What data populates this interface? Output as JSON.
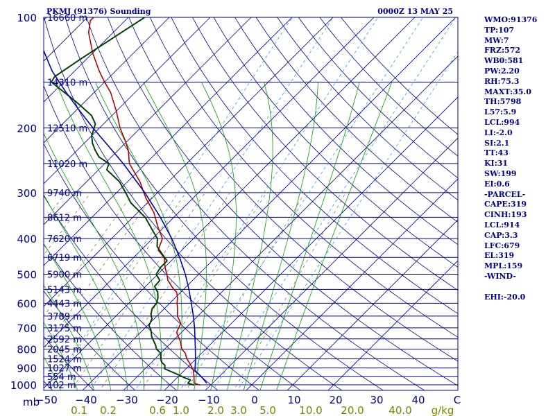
{
  "header": {
    "station": "PKMJ (91376) Sounding",
    "time": "0000Z 13 MAY 25"
  },
  "colors": {
    "isobar": "#00008b",
    "isotherm": "#00008b",
    "dry_adiabat": "#00008b",
    "moist_adiabat": "#00a000",
    "mixing_ratio": "#808040",
    "isohume": "#2aa0e0",
    "temperature": "#b00000",
    "dewpoint": "#004000",
    "parcel": "#0000b0",
    "text": "#00008b",
    "mixing_label": "#808000"
  },
  "indices": [
    "WMO:91376",
    "TP:107",
    "MW:7",
    "FRZ:572",
    "WB0:581",
    "PW:2.20",
    "RH:75.3",
    "MAXT:35.0",
    "TH:5798",
    "L57:5.9",
    "LCL:994",
    "LI:-2.0",
    "SI:2.1",
    "TT:43",
    "KI:31",
    "SW:199",
    "EI:0.6",
    "-PARCEL-",
    "CAPE:319",
    "CINH:193",
    "LCL:914",
    "CAP:3.3",
    "LFC:679",
    "EL:319",
    "MPL:159",
    "-WIND-",
    "",
    "EHI:-20.0"
  ],
  "chart_data": {
    "type": "line",
    "subtype": "skew-t log-p",
    "pressure_axis": {
      "label": "mb",
      "scale": "log",
      "range": [
        1000,
        100
      ],
      "ticks": [
        100,
        200,
        300,
        400,
        500,
        600,
        700,
        800,
        900,
        1000
      ]
    },
    "temperature_axis": {
      "range": [
        -50,
        50
      ],
      "ticks": [
        "−50",
        "−40",
        "−30",
        "−20",
        "−10",
        "0",
        "10",
        "20",
        "30",
        "40",
        "C"
      ]
    },
    "mixing_ratio_axis": {
      "unit": "g/kg",
      "ticks": [
        "0.1",
        "0.2",
        "0.6",
        "1.0",
        "2.0",
        "3.0",
        "5.0",
        "10.0",
        "20.0",
        "40.0"
      ]
    },
    "height_labels": [
      {
        "p": 100,
        "label": "16660 m"
      },
      {
        "p": 150,
        "label": "14310 m"
      },
      {
        "p": 200,
        "label": "12510 m"
      },
      {
        "p": 250,
        "label": "11020 m"
      },
      {
        "p": 300,
        "label": "9740 m"
      },
      {
        "p": 350,
        "label": "8612 m"
      },
      {
        "p": 400,
        "label": "7620 m"
      },
      {
        "p": 450,
        "label": "6719 m"
      },
      {
        "p": 500,
        "label": "5900 m"
      },
      {
        "p": 550,
        "label": "5143 m"
      },
      {
        "p": 600,
        "label": "4443 m"
      },
      {
        "p": 650,
        "label": "3789 m"
      },
      {
        "p": 700,
        "label": "3175 m"
      },
      {
        "p": 750,
        "label": "2592 m"
      },
      {
        "p": 800,
        "label": "2045 m"
      },
      {
        "p": 850,
        "label": "1524 m"
      },
      {
        "p": 900,
        "label": "1027 m"
      },
      {
        "p": 950,
        "label": "554 m"
      },
      {
        "p": 1000,
        "label": "102 m"
      }
    ],
    "series": [
      {
        "key": "temperature",
        "points": [
          [
            1002,
            27.5
          ],
          [
            990,
            25.5
          ],
          [
            965,
            24.5
          ],
          [
            935,
            23.2
          ],
          [
            910,
            22.0
          ],
          [
            880,
            20.0
          ],
          [
            850,
            17.8
          ],
          [
            820,
            16.0
          ],
          [
            800,
            14.2
          ],
          [
            760,
            11.8
          ],
          [
            720,
            8.8
          ],
          [
            700,
            8.2
          ],
          [
            680,
            7.6
          ],
          [
            650,
            5.0
          ],
          [
            620,
            3.2
          ],
          [
            600,
            1.8
          ],
          [
            580,
            0.6
          ],
          [
            560,
            -1.0
          ],
          [
            545,
            -3.0
          ],
          [
            520,
            -6.0
          ],
          [
            500,
            -7.8
          ],
          [
            480,
            -9.8
          ],
          [
            450,
            -12.6
          ],
          [
            430,
            -15.8
          ],
          [
            400,
            -17.6
          ],
          [
            370,
            -21.8
          ],
          [
            340,
            -26.0
          ],
          [
            310,
            -31.6
          ],
          [
            280,
            -37.0
          ],
          [
            250,
            -44.0
          ],
          [
            230,
            -47.5
          ],
          [
            215,
            -51.0
          ],
          [
            200,
            -55.0
          ],
          [
            180,
            -60.0
          ],
          [
            160,
            -66.0
          ],
          [
            150,
            -70.0
          ],
          [
            140,
            -74.0
          ],
          [
            125,
            -80.0
          ],
          [
            110,
            -86.0
          ],
          [
            102,
            -88.5
          ],
          [
            100,
            -88.5
          ]
        ]
      },
      {
        "key": "dewpoint",
        "points": [
          [
            1002,
            26.0
          ],
          [
            990,
            24.0
          ],
          [
            970,
            23.8
          ],
          [
            955,
            21.6
          ],
          [
            930,
            18.4
          ],
          [
            905,
            14.8
          ],
          [
            885,
            14.0
          ],
          [
            870,
            12.6
          ],
          [
            850,
            11.4
          ],
          [
            820,
            10.0
          ],
          [
            800,
            8.0
          ],
          [
            780,
            6.8
          ],
          [
            740,
            3.8
          ],
          [
            710,
            2.0
          ],
          [
            690,
            0.4
          ],
          [
            660,
            -0.6
          ],
          [
            650,
            -1.4
          ],
          [
            640,
            -2.0
          ],
          [
            620,
            -3.0
          ],
          [
            600,
            -3.2
          ],
          [
            580,
            -4.2
          ],
          [
            560,
            -5.6
          ],
          [
            540,
            -7.8
          ],
          [
            520,
            -8.0
          ],
          [
            500,
            -10.4
          ],
          [
            480,
            -11.0
          ],
          [
            460,
            -11.0
          ],
          [
            440,
            -14.0
          ],
          [
            420,
            -17.0
          ],
          [
            400,
            -18.8
          ],
          [
            380,
            -22.0
          ],
          [
            350,
            -27.0
          ],
          [
            320,
            -34.0
          ],
          [
            300,
            -37.8
          ],
          [
            280,
            -42.0
          ],
          [
            260,
            -48.0
          ],
          [
            250,
            -49.0
          ],
          [
            240,
            -53.0
          ],
          [
            230,
            -55.6
          ],
          [
            220,
            -58.0
          ],
          [
            210,
            -60.0
          ],
          [
            195,
            -62.0
          ],
          [
            185,
            -65.0
          ],
          [
            170,
            -72.0
          ],
          [
            150,
            -83.0
          ],
          [
            145,
            -83.5
          ],
          [
            130,
            -81.5
          ],
          [
            100,
            -76.0
          ]
        ]
      },
      {
        "key": "parcel",
        "points": [
          [
            990,
            28.6
          ],
          [
            960,
            26.4
          ],
          [
            930,
            24.0
          ],
          [
            914,
            22.6
          ],
          [
            880,
            21.2
          ],
          [
            850,
            19.9
          ],
          [
            800,
            17.5
          ],
          [
            750,
            14.9
          ],
          [
            700,
            12.1
          ],
          [
            650,
            8.9
          ],
          [
            600,
            5.3
          ],
          [
            550,
            1.3
          ],
          [
            500,
            -3.3
          ],
          [
            450,
            -8.8
          ],
          [
            400,
            -15.3
          ],
          [
            350,
            -23.3
          ],
          [
            300,
            -33.1
          ],
          [
            250,
            -45.5
          ],
          [
            220,
            -54.7
          ],
          [
            200,
            -61.6
          ],
          [
            180,
            -68.9
          ],
          [
            159,
            -77.3
          ],
          [
            140,
            -85.5
          ],
          [
            120,
            -94.0
          ],
          [
            100,
            -102.0
          ]
        ]
      }
    ]
  }
}
